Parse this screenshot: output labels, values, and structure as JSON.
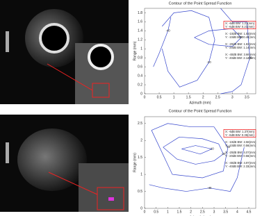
{
  "chart_data": [
    {
      "type": "contour",
      "title": "Contour of the Point Spread Function",
      "x_label": "Azimuth (mm)",
      "y_label": "Range (mm)",
      "xlim": [
        0,
        3.8
      ],
      "xticks": [
        0,
        0.5,
        1,
        1.5,
        2,
        2.5,
        3,
        3.5
      ],
      "ylim": [
        0,
        1.9
      ],
      "yticks": [
        0,
        0.2,
        0.4,
        0.6,
        0.8,
        1,
        1.2,
        1.4,
        1.6,
        1.8
      ],
      "color": "#3344cc",
      "series": [
        {
          "level": -20,
          "x": [
            0.6,
            1.0,
            1.6,
            2.2,
            2.4,
            2.2,
            1.8,
            1.2,
            0.8,
            0.6
          ],
          "y": [
            1.5,
            1.8,
            1.85,
            1.7,
            1.2,
            0.7,
            0.3,
            0.15,
            0.5,
            1.0
          ]
        },
        {
          "level": -30,
          "x": [
            2.6,
            3.0,
            3.5,
            3.6,
            3.3,
            3.0,
            2.6
          ],
          "y": [
            1.9,
            1.6,
            1.6,
            0.8,
            0.2,
            0.05,
            0.0
          ]
        },
        {
          "level": -10,
          "x": [
            1.7,
            2.2,
            3.0,
            3.3,
            3.0,
            2.2,
            1.7
          ],
          "y": [
            1.25,
            1.4,
            1.45,
            1.25,
            1.05,
            1.1,
            1.25
          ]
        },
        {
          "level": -40,
          "x": [
            0.3,
            0.5,
            0.8,
            0.9
          ],
          "y": [
            0.6,
            0.9,
            1.4,
            1.7
          ]
        }
      ],
      "annotations": [
        "X: -6dB BW: 1.21(mm)",
        "Y: -6dB BW: 0.21(mm)",
        "X: -10dB BW: 1.53(mm)",
        "Y: -10dB BW: 0.40(mm)",
        "X: -20dB BW: 1.83(mm)",
        "Y: -20dB BW: 1.14(mm)",
        "X: -40dB BW: 3.66(mm)",
        "Y: -40dB BW: 2.12(mm)"
      ]
    },
    {
      "type": "contour",
      "title": "Contour of the Point Spread Function",
      "x_label": "Azimuth (mm)",
      "y_label": "Range (mm)",
      "xlim": [
        0,
        4.8
      ],
      "xticks": [
        0,
        0.5,
        1,
        1.5,
        2,
        2.5,
        3,
        3.5,
        4,
        4.5
      ],
      "ylim": [
        0,
        2.7
      ],
      "yticks": [
        0,
        0.5,
        1,
        1.5,
        2,
        2.5
      ],
      "color": "#3344cc",
      "series": [
        {
          "level": -20,
          "x": [
            0.8,
            1.5,
            2.5,
            3.2,
            3.4,
            3.0,
            2.2,
            1.4,
            0.8
          ],
          "y": [
            1.8,
            2.1,
            2.05,
            1.9,
            1.6,
            1.4,
            1.3,
            1.45,
            1.8
          ]
        },
        {
          "level": -30,
          "x": [
            0.3,
            1.0,
            2.0,
            3.0,
            3.6,
            3.4,
            2.5,
            1.2,
            0.3
          ],
          "y": [
            2.3,
            2.5,
            2.4,
            2.4,
            1.8,
            1.1,
            0.9,
            1.0,
            2.3
          ]
        },
        {
          "level": -10,
          "x": [
            1.6,
            2.2,
            2.9,
            2.4,
            1.6
          ],
          "y": [
            1.75,
            1.85,
            1.75,
            1.6,
            1.75
          ]
        },
        {
          "level": -40,
          "x": [
            0.2,
            0.8,
            1.8,
            2.8,
            3.7,
            4.0,
            4.3
          ],
          "y": [
            0.7,
            0.6,
            0.5,
            0.6,
            0.5,
            0.9,
            1.8
          ]
        }
      ],
      "annotations": [
        "X: -6dB BW: 1.37(mm)",
        "Y: -6dB BW: 0.35(mm)",
        "X: -10dB BW: 2.58(mm)",
        "Y: -10dB BW: 0.56(mm)",
        "X: -20dB BW: 4.07(mm)",
        "Y: -20dB BW: 0.56(mm)",
        "X: -40dB BW: 4.97(mm)",
        "Y: -40dB BW: 2.33(mm)"
      ]
    }
  ]
}
